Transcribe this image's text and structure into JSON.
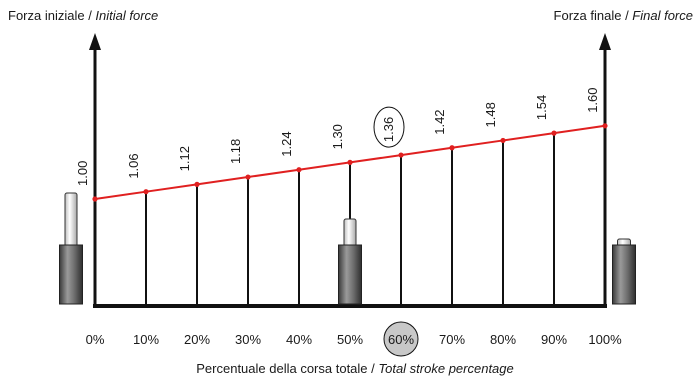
{
  "chart_data": {
    "type": "line",
    "title_left": {
      "main": "Forza iniziale / ",
      "italic": "Initial force"
    },
    "title_right": {
      "main": "Forza finale / ",
      "italic": "Final force"
    },
    "xlabel": {
      "main": "Percentuale della corsa totale / ",
      "italic": "Total stroke percentage"
    },
    "x": [
      0,
      10,
      20,
      30,
      40,
      50,
      60,
      70,
      80,
      90,
      100
    ],
    "x_tick_labels": [
      "0%",
      "10%",
      "20%",
      "30%",
      "40%",
      "50%",
      "60%",
      "70%",
      "80%",
      "90%",
      "100%"
    ],
    "values": [
      1.0,
      1.06,
      1.12,
      1.18,
      1.24,
      1.3,
      1.36,
      1.42,
      1.48,
      1.54,
      1.6
    ],
    "value_labels": [
      "1.00",
      "1.06",
      "1.12",
      "1.18",
      "1.24",
      "1.30",
      "1.36",
      "1.42",
      "1.48",
      "1.54",
      "1.60"
    ],
    "highlighted_tick_red": "50%",
    "highlighted_tick_circled": "60%",
    "circled_value": "1.36",
    "colors": {
      "line": "#e02020",
      "axis": "#111111",
      "highlight_text": "#e02020",
      "circle_fill": "#c8c8c8",
      "cylinder_dark": "#555555",
      "cylinder_light": "#e6e6e6"
    },
    "spring_icons": [
      {
        "stroke_percent": 0,
        "state": "extended"
      },
      {
        "stroke_percent": 50,
        "state": "half-compressed"
      },
      {
        "stroke_percent": 100,
        "state": "compressed"
      }
    ]
  }
}
